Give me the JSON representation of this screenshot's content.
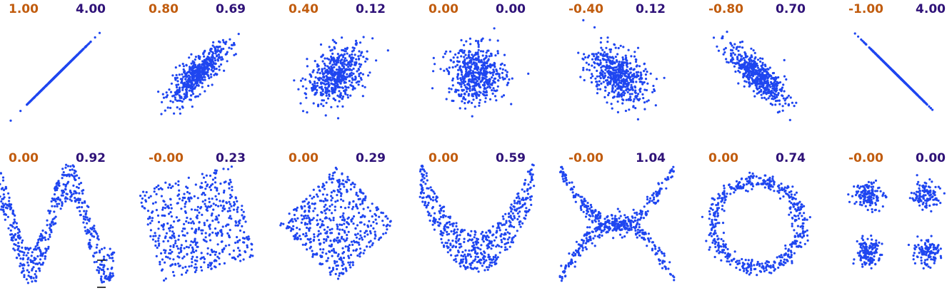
{
  "colors": {
    "points": "#1f46f0",
    "correlation_text": "#c15c0e",
    "mutual_information_text": "#2f1278",
    "tick": "#000000"
  },
  "chart_data": [
    {
      "type": "scatter",
      "shape": "positive perfect linear",
      "correlation": "1.00",
      "mutual_information": "4.00",
      "xlim": [
        -4,
        4
      ],
      "ylim": [
        -4,
        4
      ]
    },
    {
      "type": "scatter",
      "shape": "linear, strong positive",
      "correlation": "0.80",
      "mutual_information": "0.69",
      "xlim": [
        -4,
        4
      ],
      "ylim": [
        -4,
        4
      ]
    },
    {
      "type": "scatter",
      "shape": "linear, weak positive",
      "correlation": "0.40",
      "mutual_information": "0.12",
      "xlim": [
        -4,
        4
      ],
      "ylim": [
        -4,
        4
      ]
    },
    {
      "type": "scatter",
      "shape": "uncorrelated cloud",
      "correlation": "0.00",
      "mutual_information": "0.00",
      "xlim": [
        -4,
        4
      ],
      "ylim": [
        -4,
        4
      ]
    },
    {
      "type": "scatter",
      "shape": "linear, weak negative",
      "correlation": "-0.40",
      "mutual_information": "0.12",
      "xlim": [
        -4,
        4
      ],
      "ylim": [
        -4,
        4
      ]
    },
    {
      "type": "scatter",
      "shape": "linear, strong negative",
      "correlation": "-0.80",
      "mutual_information": "0.70",
      "xlim": [
        -4,
        4
      ],
      "ylim": [
        -4,
        4
      ]
    },
    {
      "type": "scatter",
      "shape": "negative perfect linear",
      "correlation": "-1.00",
      "mutual_information": "4.00",
      "xlim": [
        -4,
        4
      ],
      "ylim": [
        -4,
        4
      ]
    },
    {
      "type": "scatter",
      "shape": "sine wave",
      "correlation": "0.00",
      "mutual_information": "0.92",
      "xlim": [
        -1,
        1
      ],
      "ylim": [
        -1.3,
        1.3
      ]
    },
    {
      "type": "scatter",
      "shape": "rotated square",
      "correlation": "-0.00",
      "mutual_information": "0.23",
      "xlim": [
        -1,
        1
      ],
      "ylim": [
        -1,
        1
      ]
    },
    {
      "type": "scatter",
      "shape": "diamond",
      "correlation": "0.00",
      "mutual_information": "0.29",
      "xlim": [
        -1,
        1
      ],
      "ylim": [
        -1,
        1
      ]
    },
    {
      "type": "scatter",
      "shape": "parabola",
      "correlation": "0.00",
      "mutual_information": "0.59",
      "xlim": [
        -1,
        1
      ],
      "ylim": [
        -0.3,
        1.2
      ]
    },
    {
      "type": "scatter",
      "shape": "X shape",
      "correlation": "-0.00",
      "mutual_information": "1.04",
      "xlim": [
        -1,
        1
      ],
      "ylim": [
        -1,
        1
      ]
    },
    {
      "type": "scatter",
      "shape": "ring",
      "correlation": "0.00",
      "mutual_information": "0.74",
      "xlim": [
        -1.3,
        1.3
      ],
      "ylim": [
        -1.3,
        1.3
      ]
    },
    {
      "type": "scatter",
      "shape": "four clusters",
      "correlation": "-0.00",
      "mutual_information": "0.00",
      "xlim": [
        -5,
        5
      ],
      "ylim": [
        -5,
        5
      ]
    }
  ]
}
